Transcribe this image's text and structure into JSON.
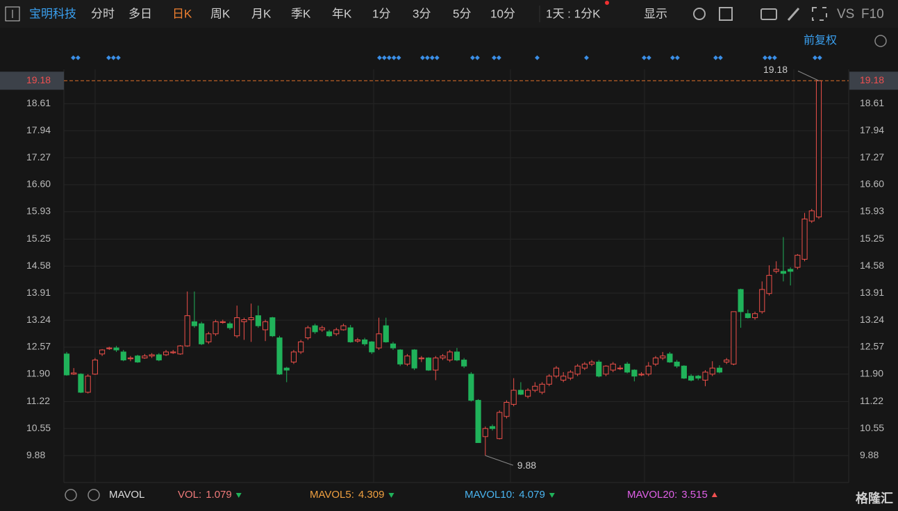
{
  "toolbar": {
    "stock": "宝明科技",
    "tabs": [
      "分时",
      "多日",
      "日K",
      "周K",
      "月K",
      "季K",
      "年K",
      "1分",
      "3分",
      "5分",
      "10分"
    ],
    "active": "日K",
    "period": "1天 : 1分K",
    "display": "显示",
    "vs": "VS",
    "f10": "F10"
  },
  "adjust": "前复权",
  "chart_data": {
    "type": "candlestick",
    "up_color": "#f0504a",
    "down_color": "#20b25a",
    "ylim": [
      9.21,
      19.46
    ],
    "yticks": [
      9.88,
      10.55,
      11.22,
      {
        "value": 11.9,
        "label": "11.90"
      },
      12.57,
      13.24,
      13.91,
      14.58,
      15.25,
      15.93,
      {
        "value": 16.6,
        "label": "16.60"
      },
      17.27,
      17.94,
      18.61
    ],
    "last_price": 19.18,
    "high_label": 19.18,
    "low_label": 9.88,
    "ohlc": [
      [
        12.4,
        12.45,
        11.86,
        11.88
      ],
      [
        11.9,
        12.05,
        11.88,
        11.93
      ],
      [
        11.9,
        11.92,
        11.43,
        11.45
      ],
      [
        11.45,
        11.9,
        11.42,
        11.85
      ],
      [
        11.9,
        12.3,
        11.88,
        12.25
      ],
      [
        12.4,
        12.52,
        12.35,
        12.5
      ],
      [
        12.53,
        12.58,
        12.5,
        12.55
      ],
      [
        12.55,
        12.6,
        12.45,
        12.5
      ],
      [
        12.45,
        12.5,
        12.22,
        12.25
      ],
      [
        12.28,
        12.35,
        12.22,
        12.3
      ],
      [
        12.35,
        12.38,
        12.18,
        12.2
      ],
      [
        12.3,
        12.4,
        12.28,
        12.35
      ],
      [
        12.35,
        12.42,
        12.3,
        12.38
      ],
      [
        12.38,
        12.42,
        12.22,
        12.25
      ],
      [
        12.38,
        12.5,
        12.35,
        12.45
      ],
      [
        12.43,
        12.5,
        12.4,
        12.45
      ],
      [
        12.4,
        12.62,
        12.38,
        12.6
      ],
      [
        12.6,
        13.95,
        12.58,
        13.35
      ],
      [
        13.2,
        13.95,
        13.05,
        13.1
      ],
      [
        13.15,
        13.2,
        12.62,
        12.65
      ],
      [
        12.7,
        12.95,
        12.65,
        12.9
      ],
      [
        12.9,
        13.25,
        12.85,
        13.2
      ],
      [
        13.18,
        13.25,
        13.15,
        13.2
      ],
      [
        13.15,
        13.2,
        13.0,
        13.05
      ],
      [
        12.85,
        13.6,
        12.8,
        13.3
      ],
      [
        13.2,
        13.3,
        12.75,
        13.25
      ],
      [
        13.25,
        13.65,
        12.7,
        13.3
      ],
      [
        13.35,
        13.6,
        13.05,
        13.1
      ],
      [
        13.0,
        13.25,
        12.72,
        13.2
      ],
      [
        13.3,
        13.32,
        12.82,
        12.85
      ],
      [
        12.8,
        12.85,
        11.88,
        11.9
      ],
      [
        12.05,
        12.08,
        11.7,
        12.0
      ],
      [
        12.2,
        12.5,
        12.15,
        12.45
      ],
      [
        12.45,
        12.75,
        12.4,
        12.7
      ],
      [
        12.8,
        13.1,
        12.75,
        13.05
      ],
      [
        13.1,
        13.15,
        12.9,
        12.95
      ],
      [
        13.0,
        13.1,
        12.95,
        13.05
      ],
      [
        12.95,
        13.0,
        12.82,
        12.85
      ],
      [
        12.9,
        13.05,
        12.85,
        13.0
      ],
      [
        13.0,
        13.15,
        12.98,
        13.1
      ],
      [
        13.05,
        13.12,
        12.68,
        12.7
      ],
      [
        12.72,
        12.8,
        12.68,
        12.75
      ],
      [
        12.75,
        12.8,
        12.6,
        12.65
      ],
      [
        12.7,
        12.72,
        12.4,
        12.45
      ],
      [
        12.55,
        13.3,
        12.5,
        12.9
      ],
      [
        13.1,
        13.3,
        12.68,
        12.7
      ],
      [
        12.65,
        12.7,
        12.5,
        12.55
      ],
      [
        12.5,
        12.52,
        12.1,
        12.15
      ],
      [
        12.15,
        12.4,
        12.1,
        12.35
      ],
      [
        12.5,
        12.52,
        12.0,
        12.05
      ],
      [
        12.28,
        12.35,
        12.2,
        12.3
      ],
      [
        12.3,
        12.32,
        11.98,
        12.0
      ],
      [
        12.0,
        12.35,
        11.75,
        12.3
      ],
      [
        12.3,
        12.4,
        12.25,
        12.35
      ],
      [
        12.25,
        12.5,
        12.2,
        12.45
      ],
      [
        12.45,
        12.55,
        12.22,
        12.25
      ],
      [
        12.25,
        12.3,
        12.05,
        12.1
      ],
      [
        11.9,
        11.95,
        11.22,
        11.25
      ],
      [
        11.25,
        11.28,
        10.2,
        10.2
      ],
      [
        10.35,
        10.6,
        9.88,
        10.55
      ],
      [
        10.6,
        10.65,
        10.5,
        10.55
      ],
      [
        10.3,
        11.0,
        10.28,
        10.95
      ],
      [
        10.85,
        11.25,
        10.8,
        11.2
      ],
      [
        11.15,
        11.8,
        11.1,
        11.5
      ],
      [
        11.5,
        11.7,
        11.38,
        11.4
      ],
      [
        11.35,
        11.55,
        11.3,
        11.5
      ],
      [
        11.5,
        11.7,
        11.45,
        11.6
      ],
      [
        11.45,
        11.7,
        11.4,
        11.65
      ],
      [
        11.65,
        11.9,
        11.6,
        11.85
      ],
      [
        11.85,
        12.1,
        11.8,
        12.05
      ],
      [
        11.75,
        11.95,
        11.7,
        11.85
      ],
      [
        11.8,
        12.0,
        11.75,
        11.95
      ],
      [
        11.9,
        12.15,
        11.85,
        12.1
      ],
      [
        12.05,
        12.2,
        12.0,
        12.15
      ],
      [
        12.15,
        12.25,
        12.1,
        12.2
      ],
      [
        12.2,
        12.25,
        11.82,
        11.85
      ],
      [
        11.9,
        12.12,
        11.85,
        12.1
      ],
      [
        12.0,
        12.2,
        11.95,
        12.15
      ],
      [
        12.05,
        12.12,
        12.0,
        12.05
      ],
      [
        12.15,
        12.2,
        11.92,
        11.95
      ],
      [
        12.0,
        12.02,
        11.72,
        11.85
      ],
      [
        11.88,
        11.95,
        11.85,
        11.9
      ],
      [
        11.9,
        12.2,
        11.85,
        12.1
      ],
      [
        12.15,
        12.35,
        12.1,
        12.3
      ],
      [
        12.3,
        12.45,
        12.25,
        12.35
      ],
      [
        12.4,
        12.45,
        12.18,
        12.2
      ],
      [
        12.2,
        12.25,
        12.05,
        12.1
      ],
      [
        12.1,
        12.12,
        11.78,
        11.8
      ],
      [
        11.85,
        11.9,
        11.72,
        11.75
      ],
      [
        11.85,
        11.88,
        11.75,
        11.8
      ],
      [
        11.75,
        12.0,
        11.6,
        11.95
      ],
      [
        11.9,
        12.22,
        11.85,
        12.05
      ],
      [
        12.05,
        12.12,
        11.92,
        11.95
      ],
      [
        12.2,
        12.3,
        12.15,
        12.25
      ],
      [
        12.15,
        13.45,
        12.12,
        13.45
      ],
      [
        14.0,
        14.02,
        13.05,
        13.45
      ],
      [
        13.4,
        13.5,
        13.28,
        13.3
      ],
      [
        13.3,
        13.45,
        13.25,
        13.4
      ],
      [
        13.45,
        14.2,
        13.4,
        14.0
      ],
      [
        13.9,
        14.6,
        13.85,
        14.35
      ],
      [
        14.45,
        14.7,
        14.4,
        14.5
      ],
      [
        14.45,
        15.3,
        14.2,
        14.4
      ],
      [
        14.5,
        14.55,
        14.1,
        14.45
      ],
      [
        14.55,
        14.88,
        14.5,
        14.85
      ],
      [
        14.75,
        15.9,
        14.7,
        15.75
      ],
      [
        15.7,
        16.0,
        15.65,
        15.95
      ],
      [
        15.8,
        19.18,
        15.75,
        19.18
      ]
    ]
  },
  "indicators": {
    "name": "MAVOL",
    "items": [
      {
        "label": "VOL:",
        "value": 1.079,
        "color": "#f07a7a"
      },
      {
        "label": "MAVOL5:",
        "value": 4.309,
        "color": "#f0a040"
      },
      {
        "label": "MAVOL10:",
        "value": 4.079,
        "color": "#4ab4f0"
      },
      {
        "label": "MAVOL20:",
        "value": 3.515,
        "color": "#e060e8"
      }
    ]
  },
  "watermark": "格隆汇"
}
